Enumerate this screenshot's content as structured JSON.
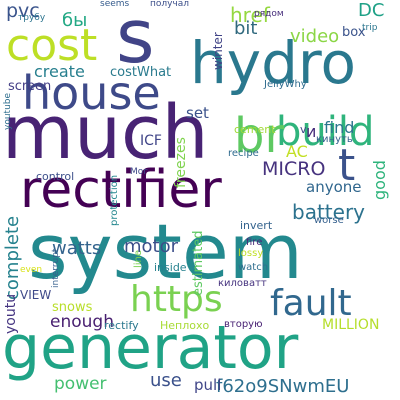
{
  "words": [
    {
      "text": "system",
      "color": "#23898e",
      "rot": 0
    },
    {
      "text": "much",
      "color": "#482374",
      "rot": 0
    },
    {
      "text": "generator",
      "color": "#20a386",
      "rot": 0
    },
    {
      "text": "rectifier",
      "color": "#440154",
      "rot": 0
    },
    {
      "text": "hydro",
      "color": "#2a788e",
      "rot": 0
    },
    {
      "text": "house",
      "color": "#3e4a89",
      "rot": 0
    },
    {
      "text": "s",
      "color": "#414487",
      "rot": 0
    },
    {
      "text": "https",
      "color": "#7ad151",
      "rot": 0
    },
    {
      "text": "build",
      "color": "#2fb47c",
      "rot": 0
    },
    {
      "text": "cost",
      "color": "#bddf26",
      "rot": 0
    },
    {
      "text": "fault",
      "color": "#31688e",
      "rot": 0
    },
    {
      "text": "br",
      "color": "#5ec962",
      "rot": 0
    },
    {
      "text": "t",
      "color": "#3b528b",
      "rot": 0
    },
    {
      "text": "battery",
      "color": "#2c728e",
      "rot": 0
    },
    {
      "text": "MICRO",
      "color": "#46327e",
      "rot": 0
    },
    {
      "text": "f62o9SNwmEU",
      "color": "#2e6f8e",
      "rot": 0
    },
    {
      "text": "watts",
      "color": "#33638d",
      "rot": 0
    },
    {
      "text": "motor",
      "color": "#3c4f8a",
      "rot": 0
    },
    {
      "text": "power",
      "color": "#44bf70",
      "rot": 0
    },
    {
      "text": "use",
      "color": "#3b518b",
      "rot": 0
    },
    {
      "text": "pull",
      "color": "#404688",
      "rot": 0
    },
    {
      "text": "enough",
      "color": "#481f70",
      "rot": 0
    },
    {
      "text": "video",
      "color": "#8bd646",
      "rot": 0
    },
    {
      "text": "href",
      "color": "#95d840",
      "rot": 0
    },
    {
      "text": "bit",
      "color": "#30697e",
      "rot": 0
    },
    {
      "text": "DC",
      "color": "#1fa187",
      "rot": 0
    },
    {
      "text": "create",
      "color": "#277f8e",
      "rot": 0
    },
    {
      "text": "costWhat",
      "color": "#2a7b8e",
      "rot": 0
    },
    {
      "text": "pvc",
      "color": "#3a548c",
      "rot": 0
    },
    {
      "text": "бы",
      "color": "#22a884",
      "rot": 0
    },
    {
      "text": "screen",
      "color": "#433e85",
      "rot": 0
    },
    {
      "text": "MILLION",
      "color": "#b5de2b",
      "rot": 0
    },
    {
      "text": "anyone",
      "color": "#31678e",
      "rot": 0
    },
    {
      "text": "find",
      "color": "#2b758e",
      "rot": 0
    },
    {
      "text": "AC",
      "color": "#c2df23",
      "rot": 0
    },
    {
      "text": "ICF",
      "color": "#404588",
      "rot": 0
    },
    {
      "text": "и",
      "color": "#472d7b",
      "rot": 0
    },
    {
      "text": "VIEW",
      "color": "#3e4989",
      "rot": 0
    },
    {
      "text": "snows",
      "color": "#b8de29",
      "rot": 0
    },
    {
      "text": "set",
      "color": "#3b528b",
      "rot": 0
    },
    {
      "text": "cement",
      "color": "#a2da37",
      "rot": 0
    },
    {
      "text": "box",
      "color": "#3a538b",
      "rot": 0
    },
    {
      "text": "rectify",
      "color": "#2a788e",
      "rot": 0
    },
    {
      "text": "Неплохо",
      "color": "#a8db34",
      "rot": 0
    },
    {
      "text": "вторую",
      "color": "#482173",
      "rot": 0
    },
    {
      "text": "киловатт",
      "color": "#46337f",
      "rot": 0
    },
    {
      "text": "inside",
      "color": "#26818e",
      "rot": 0
    },
    {
      "text": "watch",
      "color": "#2e6e8e",
      "rot": 0
    },
    {
      "text": "lossy",
      "color": "#c0df25",
      "rot": 0
    },
    {
      "text": "fire",
      "color": "#482979",
      "rot": 0
    },
    {
      "text": "worse",
      "color": "#35608d",
      "rot": 0
    },
    {
      "text": "invert",
      "color": "#33628d",
      "rot": 0
    },
    {
      "text": "кинуть",
      "color": "#34618d",
      "rot": 0
    },
    {
      "text": "v",
      "color": "#404688",
      "rot": 0
    },
    {
      "text": "recipe",
      "color": "#2f6b8e",
      "rot": 0
    },
    {
      "text": "control",
      "color": "#3c4f8a",
      "rot": 0
    },
    {
      "text": "Мог",
      "color": "#3f4889",
      "rot": 0
    },
    {
      "text": "even",
      "color": "#d8e219",
      "rot": 0
    },
    {
      "text": "JellyWhy",
      "color": "#2f6c8e",
      "rot": 0
    },
    {
      "text": "trip",
      "color": "#2a768e",
      "rot": 0
    },
    {
      "text": "рядом",
      "color": "#472e7c",
      "rot": 0
    },
    {
      "text": "получал",
      "color": "#3c4f8a",
      "rot": 0
    },
    {
      "text": "seems",
      "color": "#365c8d",
      "rot": 0
    },
    {
      "text": "трубу",
      "color": "#2b748e",
      "rot": 0
    },
    {
      "text": "complete",
      "color": "#26828e",
      "rot": -90
    },
    {
      "text": "youtu",
      "color": "#453581",
      "rot": -90
    },
    {
      "text": "freezes",
      "color": "#7fd34e",
      "rot": -90
    },
    {
      "text": "good",
      "color": "#2fb47c",
      "rot": -90
    },
    {
      "text": "estimated",
      "color": "#5ec962",
      "rot": -90
    },
    {
      "text": "winter",
      "color": "#414487",
      "rot": -90
    },
    {
      "text": "protection",
      "color": "#24878e",
      "rot": -90
    },
    {
      "text": "line",
      "color": "#7ad151",
      "rot": -90
    },
    {
      "text": "interrupt",
      "color": "#355f8d",
      "rot": -90
    },
    {
      "text": "youtube",
      "color": "#2e6e8e",
      "rot": -90
    }
  ]
}
